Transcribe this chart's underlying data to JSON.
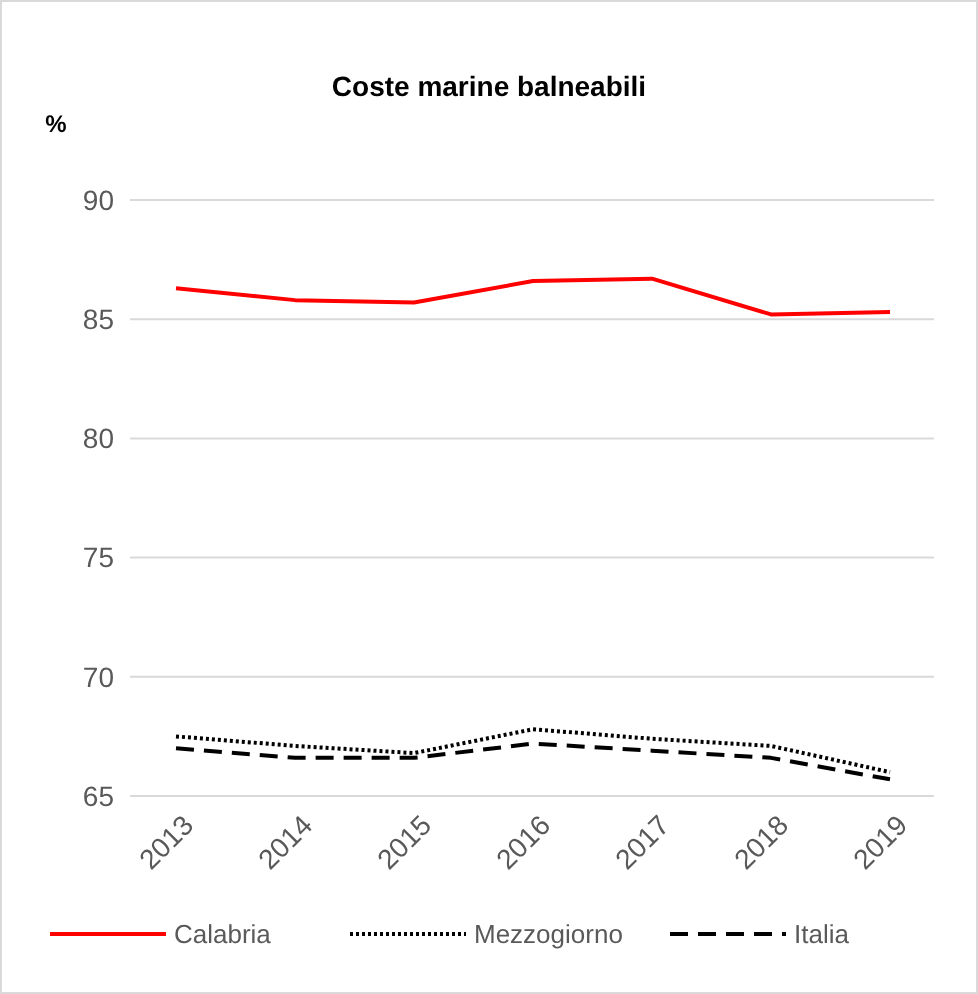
{
  "chart_data": {
    "type": "line",
    "title": "Coste marine balneabili",
    "ylabel": "%",
    "categories": [
      "2013",
      "2014",
      "2015",
      "2016",
      "2017",
      "2018",
      "2019"
    ],
    "series": [
      {
        "name": "Calabria",
        "color": "#ff0000",
        "line_style": "solid",
        "values": [
          86.3,
          85.8,
          85.7,
          86.6,
          86.7,
          85.2,
          85.3
        ]
      },
      {
        "name": "Mezzogiorno",
        "color": "#000000",
        "line_style": "dotted",
        "values": [
          67.5,
          67.1,
          66.8,
          67.8,
          67.4,
          67.1,
          66.0
        ]
      },
      {
        "name": "Italia",
        "color": "#000000",
        "line_style": "dashed",
        "values": [
          67.0,
          66.6,
          66.6,
          67.2,
          66.9,
          66.6,
          65.7
        ]
      }
    ],
    "ylim": [
      65,
      90
    ],
    "yticks": [
      65,
      70,
      75,
      80,
      85,
      90
    ],
    "grid": "y",
    "legend": "bottom"
  }
}
